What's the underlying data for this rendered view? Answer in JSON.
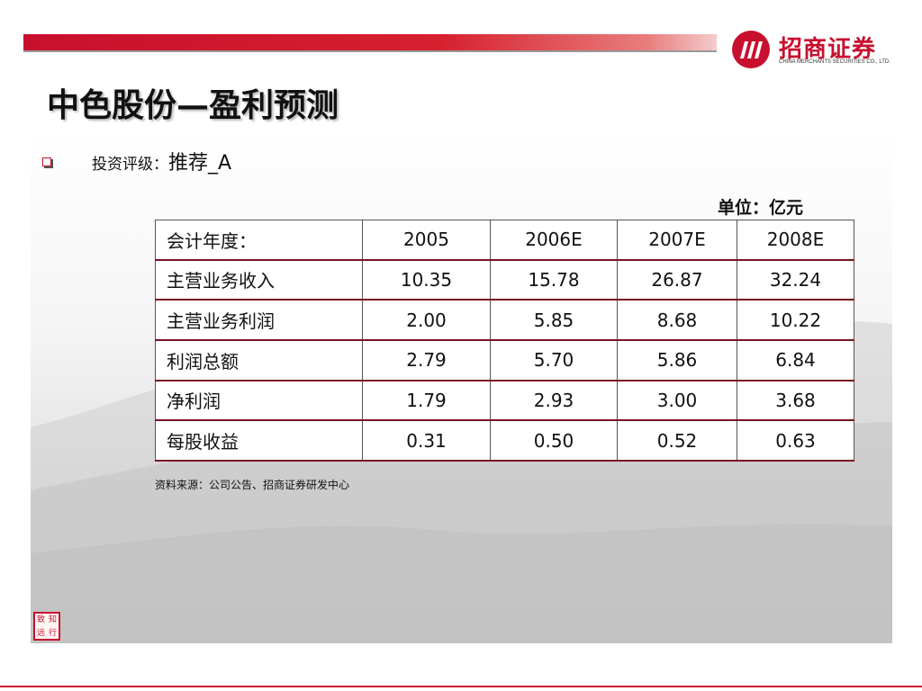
{
  "header": {
    "title": "中色股份—盈利预测",
    "brand_name": "招商证券",
    "brand_sub": "CHINA MERCHANTS SECURITIES CO., LTD.",
    "logo_mark": "m"
  },
  "rating": {
    "label": "投资评级：",
    "value": "推荐_A"
  },
  "unit": "单位：亿元",
  "table": {
    "columns": [
      "会计年度：",
      "2005",
      "2006E",
      "2007E",
      "2008E"
    ],
    "rows": [
      {
        "label": "主营业务收入",
        "values": [
          "10.35",
          "15.78",
          "26.87",
          "32.24"
        ]
      },
      {
        "label": "主营业务利润",
        "values": [
          "2.00",
          "5.85",
          "8.68",
          "10.22"
        ]
      },
      {
        "label": "利润总额",
        "values": [
          "2.79",
          "5.70",
          "5.86",
          "6.84"
        ]
      },
      {
        "label": "净利润",
        "values": [
          "1.79",
          "2.93",
          "3.00",
          "3.68"
        ]
      },
      {
        "label": "每股收益",
        "values": [
          "0.31",
          "0.50",
          "0.52",
          "0.63"
        ]
      }
    ]
  },
  "source": "资料来源：公司公告、招商证券研发中心",
  "seal": {
    "chars": [
      "致",
      "知",
      "远",
      "行"
    ]
  },
  "colors": {
    "brand_red": "#c8102e",
    "rule_dark_red": "#7a1420"
  }
}
